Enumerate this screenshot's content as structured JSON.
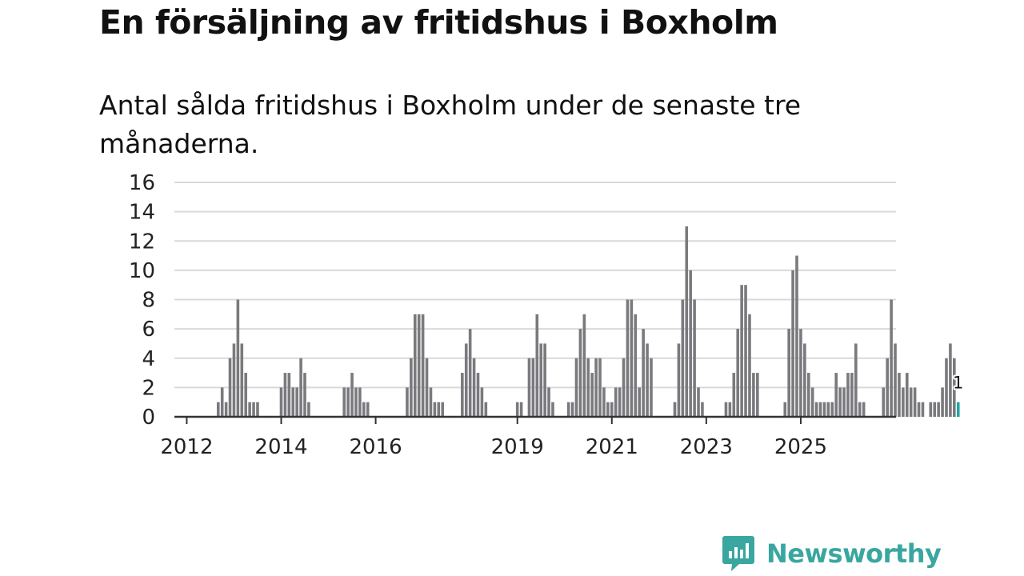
{
  "title": "En försäljning av fritidshus i Boxholm",
  "subtitle": "Antal sålda fritidshus i Boxholm under de senaste tre månaderna.",
  "logo": {
    "name": "Newsworthy",
    "icon": "newsworthy-logo-icon"
  },
  "colors": {
    "bar": "#7a7a7e",
    "highlight": "#1fa5a0",
    "grid": "#d9d9d9",
    "axis": "#333333",
    "brand": "#3aa6a0"
  },
  "chart_data": {
    "type": "bar",
    "ylim": [
      0,
      16
    ],
    "yticks": [
      0,
      2,
      4,
      6,
      8,
      10,
      12,
      14,
      16
    ],
    "xtick_labels": [
      "2012",
      "2014",
      "2016",
      "2019",
      "2021",
      "2023",
      "2025"
    ],
    "grid": true,
    "start_year": 2011,
    "start_month": 12,
    "values": [
      0,
      0,
      0,
      0,
      0,
      0,
      0,
      0,
      0,
      1,
      2,
      1,
      4,
      5,
      8,
      5,
      3,
      1,
      1,
      1,
      0,
      0,
      0,
      0,
      0,
      2,
      3,
      3,
      2,
      2,
      4,
      3,
      1,
      0,
      0,
      0,
      0,
      0,
      0,
      0,
      0,
      2,
      2,
      3,
      2,
      2,
      1,
      1,
      0,
      0,
      0,
      0,
      0,
      0,
      0,
      0,
      0,
      2,
      4,
      7,
      7,
      7,
      4,
      2,
      1,
      1,
      1,
      0,
      0,
      0,
      0,
      3,
      5,
      6,
      4,
      3,
      2,
      1,
      0,
      0,
      0,
      0,
      0,
      0,
      0,
      1,
      1,
      0,
      4,
      4,
      7,
      5,
      5,
      2,
      1,
      0,
      0,
      0,
      1,
      1,
      4,
      6,
      7,
      4,
      3,
      4,
      4,
      2,
      1,
      1,
      2,
      2,
      4,
      8,
      8,
      7,
      2,
      6,
      5,
      4,
      0,
      0,
      0,
      0,
      0,
      1,
      5,
      8,
      13,
      10,
      8,
      2,
      1,
      0,
      0,
      0,
      0,
      0,
      1,
      1,
      3,
      6,
      9,
      9,
      7,
      3,
      3,
      0,
      0,
      0,
      0,
      0,
      0,
      1,
      6,
      10,
      11,
      6,
      5,
      3,
      2,
      1,
      1,
      1,
      1,
      1,
      3,
      2,
      2,
      3,
      3,
      5,
      1,
      1,
      0,
      0,
      0,
      0,
      2,
      4,
      8,
      5,
      3,
      2,
      3,
      2,
      2,
      1,
      1,
      0,
      1,
      1,
      1,
      2,
      4,
      5,
      4,
      1
    ],
    "highlight_last": true,
    "last_value_label": "1"
  }
}
